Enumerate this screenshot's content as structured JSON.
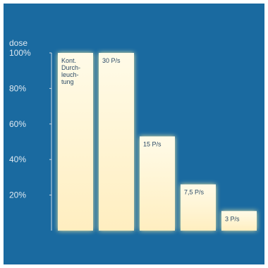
{
  "colors": {
    "background": "#1a6aa0",
    "bar_top": "#fffbe8",
    "bar_bottom": "#ffeec0",
    "glow": "#fff0a0",
    "text": "#dfe9f1",
    "axis": "#cfdbe6"
  },
  "chart_data": {
    "type": "bar",
    "ylabel": "dose",
    "ylim": [
      0,
      100
    ],
    "yticks": [
      "20%",
      "40%",
      "60%",
      "80%",
      "100%"
    ],
    "ytick_values": [
      20,
      40,
      60,
      80,
      100
    ],
    "grid": false,
    "categories": [
      "Kont. Durch-leuch-tung",
      "30 P/s",
      "15 P/s",
      "7,5 P/s",
      "3 P/s"
    ],
    "bar_labels": [
      [
        "Kont.",
        "Durch-",
        "leuch-",
        "tung"
      ],
      [
        "30 P/s"
      ],
      [
        "15 P/s"
      ],
      [
        "7,5 P/s"
      ],
      [
        "3 P/s"
      ]
    ],
    "values": [
      100,
      100,
      53,
      26,
      11
    ]
  }
}
